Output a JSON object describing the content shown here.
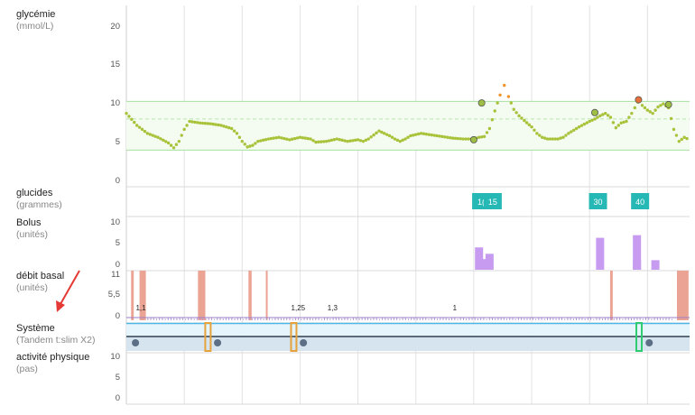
{
  "panels": {
    "glucose": {
      "title": "glycémie",
      "unit": "(mmol/L)",
      "ticks": [
        "20",
        "15",
        "10",
        "5",
        "0"
      ]
    },
    "carbs": {
      "title": "glucides",
      "unit": "(grammes)"
    },
    "bolus": {
      "title": "Bolus",
      "unit": "(unités)",
      "ticks": [
        "10",
        "5",
        "0"
      ]
    },
    "basal": {
      "title": "débit basal",
      "unit": "(unités)",
      "ticks": [
        "11",
        "5,5",
        "0"
      ]
    },
    "system": {
      "title": "Système",
      "unit": "(Tandem t:slim X2)"
    },
    "activity": {
      "title": "activité physique",
      "unit": "(pas)",
      "ticks": [
        "10",
        "5",
        "0"
      ]
    }
  },
  "chart_data": {
    "type": "line",
    "glucose": {
      "ylim": [
        0,
        22
      ],
      "target_range": [
        3.9,
        10
      ],
      "target_mid": 7.8,
      "points": [
        [
          0,
          8.5
        ],
        [
          2,
          7
        ],
        [
          4,
          6
        ],
        [
          6,
          5.5
        ],
        [
          8,
          4.8
        ],
        [
          9,
          4.2
        ],
        [
          10,
          5
        ],
        [
          11,
          6.5
        ],
        [
          12,
          7.5
        ],
        [
          14,
          7.3
        ],
        [
          16,
          7.2
        ],
        [
          18,
          7
        ],
        [
          20,
          6.6
        ],
        [
          21,
          6
        ],
        [
          22,
          5
        ],
        [
          23,
          4.3
        ],
        [
          24,
          4.5
        ],
        [
          25,
          5
        ],
        [
          27,
          5.3
        ],
        [
          29,
          5.5
        ],
        [
          31,
          5.2
        ],
        [
          33,
          5.5
        ],
        [
          35,
          5.3
        ],
        [
          36,
          4.9
        ],
        [
          38,
          5
        ],
        [
          40,
          5.3
        ],
        [
          42,
          5
        ],
        [
          44,
          5.2
        ],
        [
          45,
          5
        ],
        [
          46,
          5.3
        ],
        [
          48,
          6.3
        ],
        [
          49,
          6
        ],
        [
          50,
          5.7
        ],
        [
          51,
          5.3
        ],
        [
          52,
          5
        ],
        [
          53,
          5.3
        ],
        [
          54,
          5.7
        ],
        [
          56,
          6
        ],
        [
          58,
          5.8
        ],
        [
          60,
          5.6
        ],
        [
          62,
          5.4
        ],
        [
          64,
          5.3
        ],
        [
          66,
          5.3
        ],
        [
          67,
          5.5
        ],
        [
          68,
          5.6
        ],
        [
          69,
          6.6
        ],
        [
          70,
          8.8
        ],
        [
          71,
          10.8
        ],
        [
          71.8,
          12
        ],
        [
          72.6,
          10.6
        ],
        [
          73.6,
          9
        ],
        [
          74.6,
          8.2
        ],
        [
          75.6,
          7.6
        ],
        [
          77,
          6.8
        ],
        [
          78,
          6
        ],
        [
          79,
          5.5
        ],
        [
          80,
          5.3
        ],
        [
          82,
          5.3
        ],
        [
          83,
          5.5
        ],
        [
          84,
          6
        ],
        [
          86,
          6.8
        ],
        [
          88,
          7.5
        ],
        [
          89,
          7.8
        ],
        [
          90,
          8.2
        ],
        [
          91,
          8.5
        ],
        [
          92,
          8
        ],
        [
          93,
          6.7
        ],
        [
          94,
          7.3
        ],
        [
          95,
          7.5
        ],
        [
          96,
          8.5
        ],
        [
          97.2,
          9.9
        ],
        [
          98,
          9.5
        ],
        [
          99,
          8.9
        ],
        [
          100,
          8.5
        ],
        [
          101,
          9.3
        ],
        [
          102,
          9.7
        ],
        [
          103,
          9.2
        ],
        [
          104,
          6.5
        ],
        [
          105,
          5
        ],
        [
          106,
          5.5
        ],
        [
          107,
          5.2
        ]
      ],
      "markers": [
        [
          66,
          5.2
        ],
        [
          67.5,
          9.8
        ],
        [
          89,
          8.6
        ],
        [
          97.3,
          10.2
        ],
        [
          103,
          9.6
        ]
      ]
    },
    "carbs": [
      {
        "x": 67.4,
        "label": "1("
      },
      {
        "x": 69.6,
        "label": "15"
      },
      {
        "x": 89.6,
        "label": "30"
      },
      {
        "x": 97.6,
        "label": "40"
      }
    ],
    "bolus": {
      "ylim": [
        0,
        10
      ],
      "bars": [
        [
          67,
          4.2
        ],
        [
          68,
          2
        ],
        [
          69,
          3
        ],
        [
          90,
          6
        ],
        [
          97,
          6.5
        ],
        [
          97,
          1.8
        ],
        [
          100.5,
          1.8
        ]
      ]
    },
    "basal": {
      "ylim": [
        0,
        11
      ],
      "annotations": [
        {
          "x": 1.8,
          "label": "1,1"
        },
        {
          "x": 31.3,
          "label": "1,25"
        },
        {
          "x": 38.2,
          "label": "1,3"
        },
        {
          "x": 62,
          "label": "1"
        }
      ],
      "suspend_bars": [
        [
          0.9,
          1.4
        ],
        [
          2.5,
          3.7
        ],
        [
          13.6,
          15
        ],
        [
          23.2,
          23.8
        ],
        [
          26.5,
          26.8
        ],
        [
          91.9,
          92.4
        ],
        [
          104.6,
          106.8
        ]
      ],
      "profile_line": 0.6
    },
    "system": {
      "events": [
        [
          15.5,
          "#e6a23c"
        ],
        [
          31.8,
          "#e6a23c"
        ],
        [
          97.4,
          "#2ecc71"
        ]
      ]
    },
    "activity": {
      "ylim": [
        0,
        10
      ]
    },
    "x_range": [
      0,
      107
    ],
    "grid_x": [
      0,
      11,
      22,
      33,
      44,
      55,
      66,
      77,
      88,
      99
    ]
  }
}
